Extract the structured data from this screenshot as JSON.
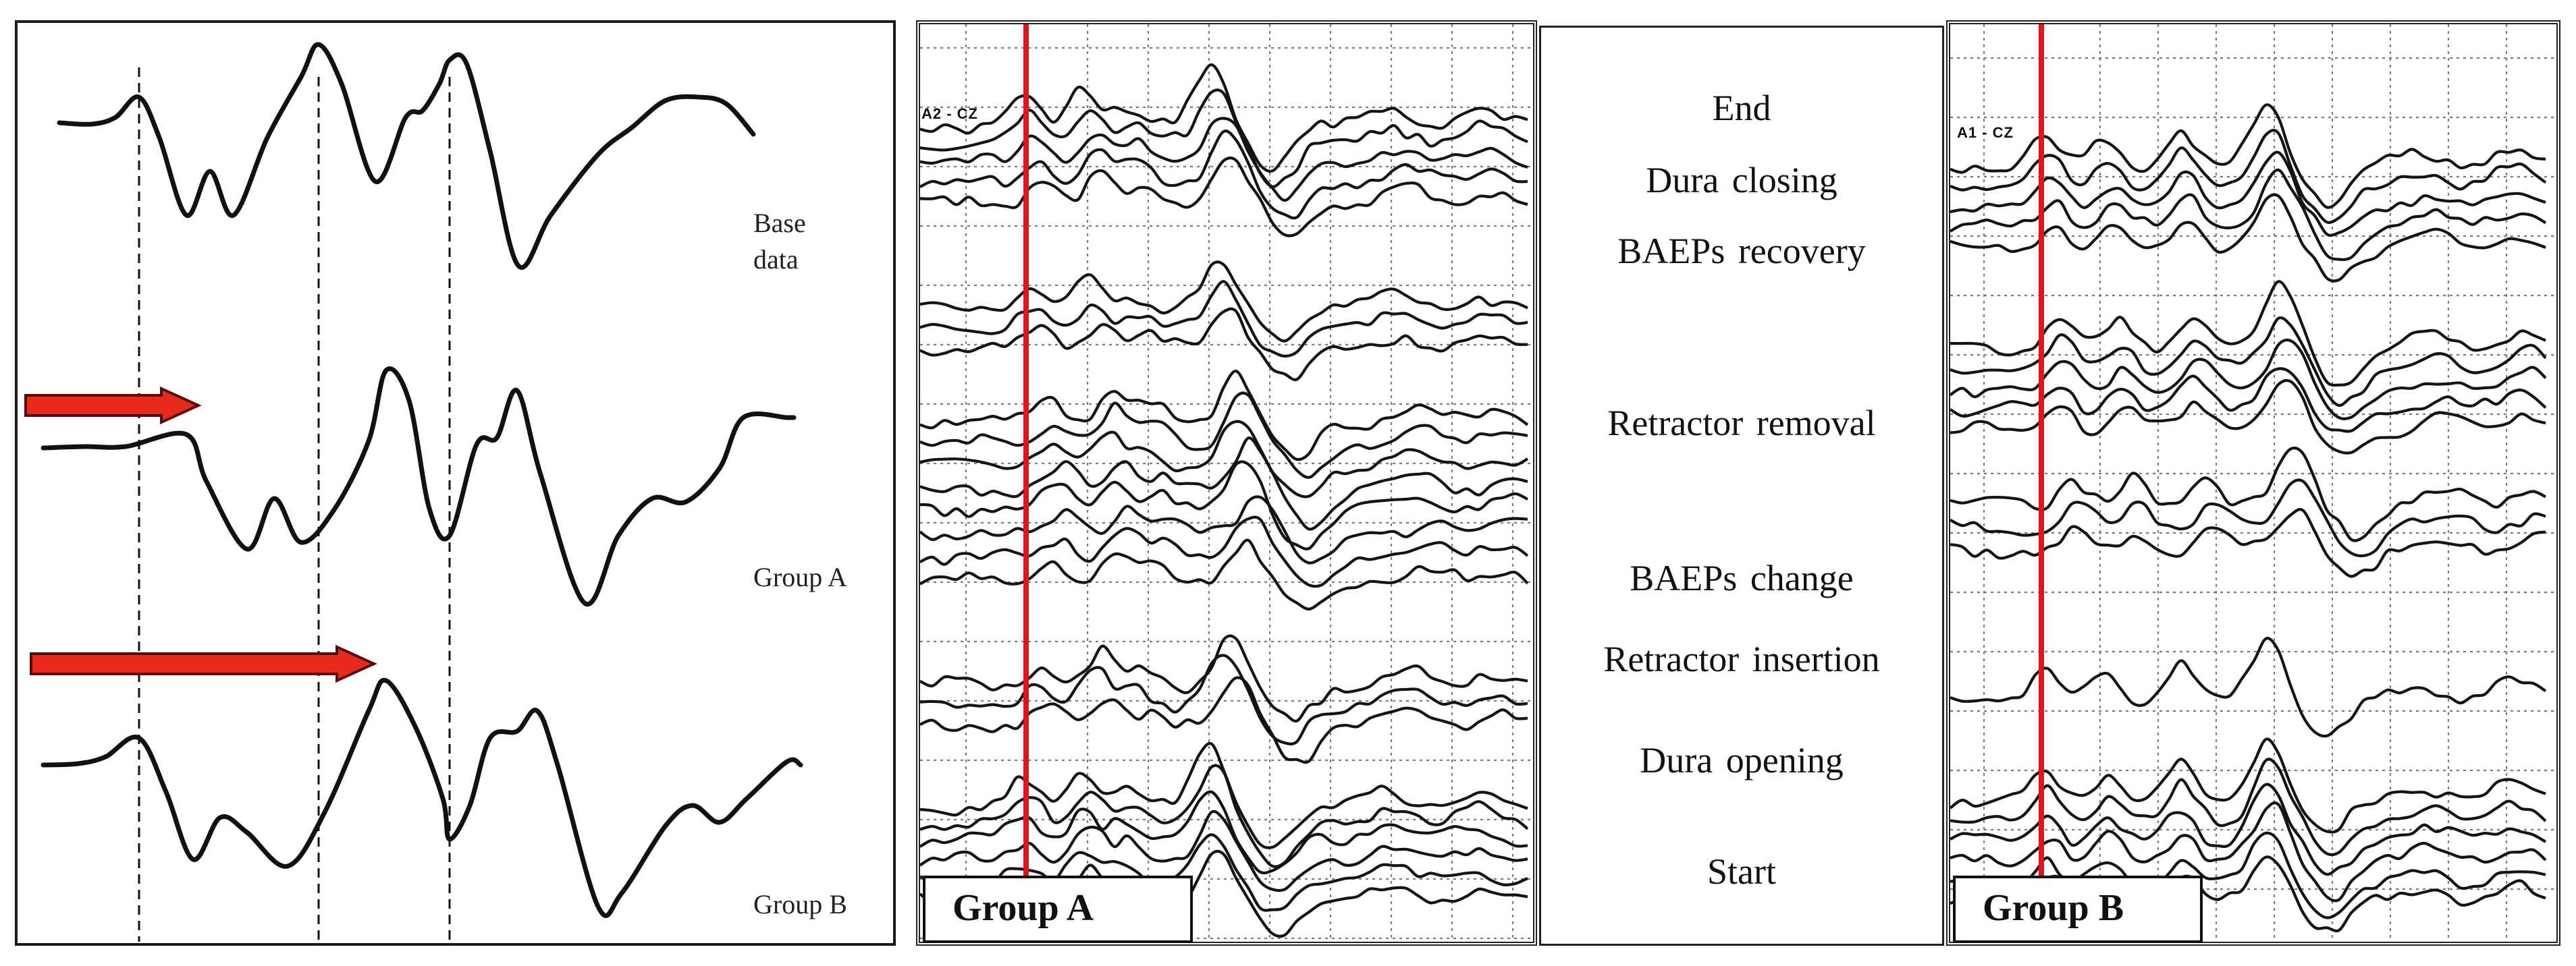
{
  "schematic": {
    "traces": [
      {
        "label": "Base\ndata",
        "shift": "none"
      },
      {
        "label": "Group A",
        "shift": "small"
      },
      {
        "label": "Group B",
        "shift": "large"
      }
    ]
  },
  "recordings": [
    {
      "tag": "Group A",
      "channel": "A2 - CZ"
    },
    {
      "tag": "Group B",
      "channel": "A1 - CZ"
    }
  ],
  "events": [
    "End",
    "Dura closing",
    "BAEPs recovery",
    "Retractor removal",
    "BAEPs change",
    "Retractor insertion",
    "Dura opening",
    "Start"
  ],
  "colors": {
    "marker": "#e01515",
    "arrow_fill": "#e82a1a",
    "arrow_stroke": "#5a0a0a",
    "trace": "#141414",
    "grid": "#7a7a7a"
  }
}
